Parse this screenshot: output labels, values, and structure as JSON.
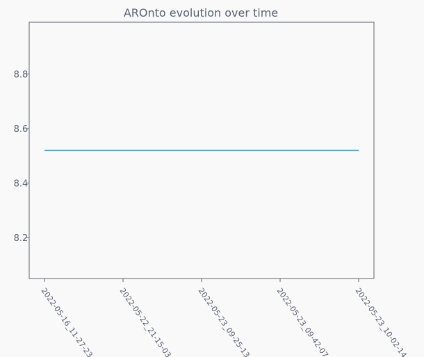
{
  "chart_data": {
    "type": "line",
    "title": "AROnto evolution over time",
    "xlabel": "",
    "ylabel": "",
    "categories": [
      "2022-05-16_11-27-23",
      "2022-05-22_21-15-03",
      "2022-05-23_09-25-13",
      "2022-05-23_09-42-07",
      "2022-05-23_10-02-14"
    ],
    "series": [
      {
        "values": [
          8.52,
          8.52,
          8.52,
          8.52,
          8.52
        ],
        "color": "#2aa3cf"
      }
    ],
    "ylim": [
      8.05,
      8.99
    ],
    "yticks": [
      "8.2",
      "8.4",
      "8.6",
      "8.8"
    ],
    "grid": false,
    "legend": "none"
  },
  "colors": {
    "background": "#f9f9f9",
    "axes": "#5a6272",
    "text": "#5a6272",
    "line": "#2aa3cf"
  }
}
